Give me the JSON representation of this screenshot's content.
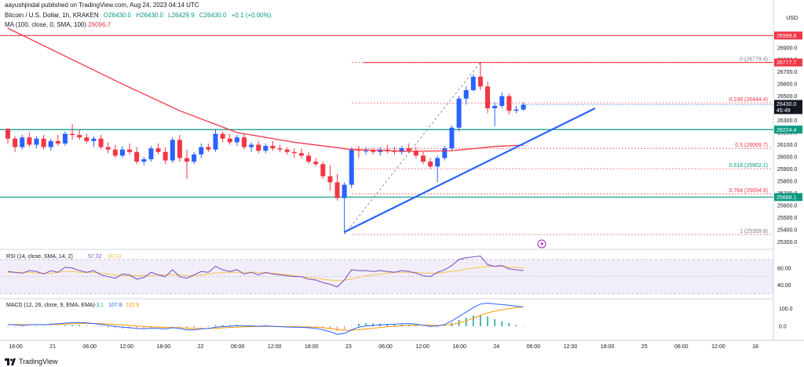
{
  "header": {
    "credit": "aayushjindal published on TradingView.com, Aug 24, 2023 04:14 UTC",
    "symbol": "Bitcoin / U.S. Dollar, 1h, KRAKEN",
    "open": "O26430.0",
    "high": "H26430.0",
    "low": "L26429.9",
    "close": "C26430.0",
    "change": "+0.1 (+0.00%)",
    "sma_label": "MA (100, close, 0, SMA, 100)",
    "sma_value": "26096.7",
    "currency": "USD"
  },
  "footer": {
    "brand": "TradingView"
  },
  "colors": {
    "up": "#2962ff",
    "down": "#f23645",
    "sma": "#f23645",
    "support": "#089981",
    "resistance": "#f23645",
    "trendline": "#2962ff",
    "fib": "#f23645",
    "rsi": "#7e57c2",
    "macd": "#2962ff",
    "signal": "#ff9800",
    "hist": "#26a69a"
  },
  "chart_data": [
    {
      "type": "candlestick",
      "x_ticks": [
        "18:00",
        "21",
        "06:00",
        "12:00",
        "18:00",
        "22",
        "06:00",
        "12:00",
        "18:00",
        "23",
        "06:00",
        "12:00",
        "18:00",
        "24",
        "06:00",
        "12:00",
        "18:00",
        "25",
        "06:00",
        "12:00",
        "18"
      ],
      "y_ticks": [
        "25300.0",
        "25400.0",
        "25500.0",
        "25600.0",
        "25700.0",
        "25800.0",
        "25900.0",
        "26000.0",
        "26100.0",
        "26200.0",
        "26300.0",
        "26400.0",
        "26500.0",
        "26600.0",
        "26700.0",
        "26800.0",
        "26900.0"
      ],
      "ylim": [
        25250,
        27060
      ],
      "candles_hourly_ohlc": [
        [
          26230,
          26240,
          26110,
          26150
        ],
        [
          26150,
          26170,
          26040,
          26080
        ],
        [
          26080,
          26180,
          26060,
          26160
        ],
        [
          26160,
          26200,
          26080,
          26100
        ],
        [
          26100,
          26170,
          26070,
          26150
        ],
        [
          26150,
          26180,
          26060,
          26080
        ],
        [
          26080,
          26150,
          26050,
          26130
        ],
        [
          26130,
          26180,
          26090,
          26110
        ],
        [
          26110,
          26210,
          26090,
          26190
        ],
        [
          26190,
          26270,
          26140,
          26180
        ],
        [
          26180,
          26220,
          26140,
          26160
        ],
        [
          26160,
          26190,
          26110,
          26130
        ],
        [
          26130,
          26170,
          26080,
          26150
        ],
        [
          26150,
          26180,
          26060,
          26080
        ],
        [
          26080,
          26120,
          26030,
          26060
        ],
        [
          26060,
          26100,
          25990,
          26010
        ],
        [
          26010,
          26090,
          25990,
          26060
        ],
        [
          26060,
          26110,
          26020,
          26040
        ],
        [
          26040,
          26080,
          25940,
          25960
        ],
        [
          25960,
          26000,
          25930,
          25980
        ],
        [
          25980,
          26090,
          25960,
          26070
        ],
        [
          26070,
          26110,
          26020,
          26040
        ],
        [
          26040,
          26080,
          25940,
          25970
        ],
        [
          25970,
          26160,
          25950,
          26140
        ],
        [
          26140,
          26180,
          25960,
          25990
        ],
        [
          25990,
          26060,
          25820,
          25960
        ],
        [
          25960,
          26040,
          25940,
          26020
        ],
        [
          26020,
          26110,
          25990,
          26080
        ],
        [
          26080,
          26110,
          26040,
          26060
        ],
        [
          26060,
          26230,
          26040,
          26190
        ],
        [
          26190,
          26210,
          26120,
          26150
        ],
        [
          26150,
          26190,
          26100,
          26120
        ],
        [
          26120,
          26180,
          26090,
          26160
        ],
        [
          26160,
          26190,
          26060,
          26080
        ],
        [
          26080,
          26120,
          26040,
          26100
        ],
        [
          26100,
          26130,
          26030,
          26050
        ],
        [
          26050,
          26110,
          26030,
          26090
        ],
        [
          26090,
          26130,
          26050,
          26070
        ],
        [
          26070,
          26100,
          26040,
          26060
        ],
        [
          26060,
          26080,
          26020,
          26040
        ],
        [
          26040,
          26070,
          25990,
          26030
        ],
        [
          26030,
          26070,
          25990,
          26010
        ],
        [
          26010,
          26040,
          25940,
          25960
        ],
        [
          25960,
          25990,
          25920,
          25940
        ],
        [
          25940,
          25960,
          25820,
          25840
        ],
        [
          25840,
          25930,
          25720,
          25790
        ],
        [
          25790,
          25860,
          25640,
          25660
        ],
        [
          25660,
          25790,
          25370,
          25770
        ],
        [
          25770,
          26080,
          25740,
          26060
        ],
        [
          26060,
          26090,
          25990,
          26050
        ],
        [
          26050,
          26080,
          26020,
          26050
        ],
        [
          26050,
          26070,
          26020,
          26040
        ],
        [
          26040,
          26080,
          26010,
          26060
        ],
        [
          26060,
          26100,
          26030,
          26050
        ],
        [
          26050,
          26080,
          26020,
          26040
        ],
        [
          26040,
          26090,
          26020,
          26070
        ],
        [
          26070,
          26110,
          26030,
          26050
        ],
        [
          26050,
          26080,
          25990,
          26010
        ],
        [
          26010,
          26040,
          25940,
          25960
        ],
        [
          25960,
          25990,
          25900,
          25920
        ],
        [
          25920,
          26010,
          25790,
          25990
        ],
        [
          25990,
          26090,
          25970,
          26070
        ],
        [
          26070,
          26260,
          26050,
          26240
        ],
        [
          26240,
          26500,
          26210,
          26480
        ],
        [
          26480,
          26580,
          26430,
          26550
        ],
        [
          26550,
          26680,
          26540,
          26660
        ],
        [
          26660,
          26780,
          26550,
          26580
        ],
        [
          26580,
          26620,
          26360,
          26400
        ],
        [
          26400,
          26450,
          26250,
          26420
        ],
        [
          26420,
          26530,
          26400,
          26500
        ],
        [
          26500,
          26520,
          26350,
          26380
        ],
        [
          26380,
          26420,
          26360,
          26390
        ],
        [
          26390,
          26450,
          26380,
          26430
        ]
      ],
      "sma_100": [
        [
          0,
          27060
        ],
        [
          8,
          26830
        ],
        [
          16,
          26600
        ],
        [
          24,
          26380
        ],
        [
          32,
          26200
        ],
        [
          40,
          26120
        ],
        [
          48,
          26060
        ],
        [
          56,
          26045
        ],
        [
          62,
          26050
        ],
        [
          68,
          26085
        ],
        [
          72,
          26097
        ]
      ],
      "horizontal_levels": [
        {
          "label": "26999.8",
          "value": 26999.8,
          "color": "#f23645"
        },
        {
          "label": "26777.7",
          "value": 26777.7,
          "color": "#f23645"
        },
        {
          "label": "26224.4",
          "value": 26224.4,
          "color": "#089981"
        },
        {
          "label": "25668.1",
          "value": 25668.1,
          "color": "#089981"
        }
      ],
      "fib_levels": [
        {
          "ratio": "0",
          "price": "(26779.4)",
          "value": 26779.4
        },
        {
          "ratio": "0.236",
          "price": "(26444.4)",
          "value": 26444.4
        },
        {
          "ratio": "0.5",
          "price": "(26069.7)",
          "value": 26069.7
        },
        {
          "ratio": "0.618",
          "price": "(25902.1)",
          "value": 25902.1
        },
        {
          "ratio": "0.764",
          "price": "(25694.9)",
          "value": 25694.9
        },
        {
          "ratio": "1",
          "price": "(25359.9)",
          "value": 25359.9
        }
      ],
      "trendline": [
        [
          47,
          25380
        ],
        [
          82,
          26400
        ]
      ],
      "last_price": {
        "label": "26430.0",
        "countdown": "45:49",
        "value": 26430.0
      }
    },
    {
      "type": "line",
      "name": "RSI",
      "legend": "RSI (14, close, SMA, 14, 2)",
      "legend_values": [
        "57.32",
        "60.63"
      ],
      "y_ticks": [
        "40.00",
        "60.00"
      ],
      "ylim": [
        25,
        80
      ],
      "band": [
        30,
        70
      ],
      "rsi": [
        56,
        55,
        54,
        57,
        56,
        53,
        57,
        55,
        61,
        60,
        57,
        55,
        57,
        52,
        50,
        48,
        53,
        52,
        47,
        49,
        55,
        52,
        50,
        58,
        50,
        48,
        52,
        56,
        55,
        62,
        58,
        56,
        58,
        53,
        55,
        52,
        55,
        53,
        52,
        51,
        50,
        50,
        47,
        46,
        43,
        41,
        38,
        46,
        58,
        57,
        57,
        56,
        57,
        56,
        55,
        57,
        56,
        54,
        51,
        50,
        55,
        58,
        63,
        70,
        72,
        73,
        74,
        64,
        62,
        63,
        59,
        58,
        57
      ],
      "rsi_ma": [
        55,
        55,
        55,
        55,
        54,
        54,
        54,
        55,
        56,
        56,
        55,
        55,
        55,
        54,
        53,
        52,
        51,
        51,
        51,
        51,
        51,
        52,
        52,
        52,
        52,
        51,
        51,
        52,
        53,
        54,
        55,
        55,
        55,
        55,
        55,
        55,
        54,
        54,
        53,
        52,
        51,
        50,
        49,
        48,
        47,
        46,
        45,
        46,
        47,
        49,
        51,
        52,
        53,
        54,
        55,
        55,
        55,
        55,
        54,
        54,
        54,
        55,
        56,
        57,
        59,
        60,
        61,
        62,
        62,
        62,
        61,
        61,
        60
      ]
    },
    {
      "type": "line",
      "name": "MACD",
      "legend": "MACD (12, 26, close, 9, EMA, EMA)",
      "legend_values": [
        "-3.1",
        "107.8",
        "110.9"
      ],
      "y_ticks": [
        "100.0",
        "0.0"
      ],
      "ylim": [
        -70,
        150
      ],
      "macd": [
        10,
        8,
        5,
        8,
        10,
        8,
        12,
        14,
        18,
        20,
        22,
        19,
        15,
        10,
        5,
        0,
        -5,
        -8,
        -12,
        -14,
        -10,
        -12,
        -15,
        -8,
        -12,
        -20,
        -20,
        -15,
        -12,
        -5,
        -2,
        0,
        4,
        2,
        2,
        0,
        2,
        0,
        -2,
        -4,
        -5,
        -6,
        -8,
        -12,
        -20,
        -30,
        -45,
        -40,
        -20,
        -5,
        2,
        5,
        8,
        10,
        12,
        14,
        15,
        12,
        6,
        0,
        2,
        10,
        30,
        55,
        80,
        105,
        125,
        130,
        125,
        122,
        118,
        112,
        108
      ],
      "signal": [
        10,
        10,
        9,
        9,
        9,
        9,
        10,
        11,
        12,
        14,
        15,
        16,
        16,
        15,
        13,
        11,
        8,
        5,
        2,
        -1,
        -3,
        -5,
        -7,
        -7,
        -8,
        -10,
        -12,
        -12,
        -12,
        -11,
        -9,
        -7,
        -5,
        -3,
        -2,
        -1,
        -1,
        -1,
        -1,
        -1,
        -2,
        -3,
        -4,
        -5,
        -8,
        -12,
        -18,
        -22,
        -22,
        -19,
        -15,
        -11,
        -7,
        -3,
        0,
        3,
        6,
        7,
        7,
        6,
        5,
        6,
        11,
        19,
        31,
        45,
        61,
        75,
        85,
        93,
        99,
        105,
        110
      ]
    }
  ]
}
